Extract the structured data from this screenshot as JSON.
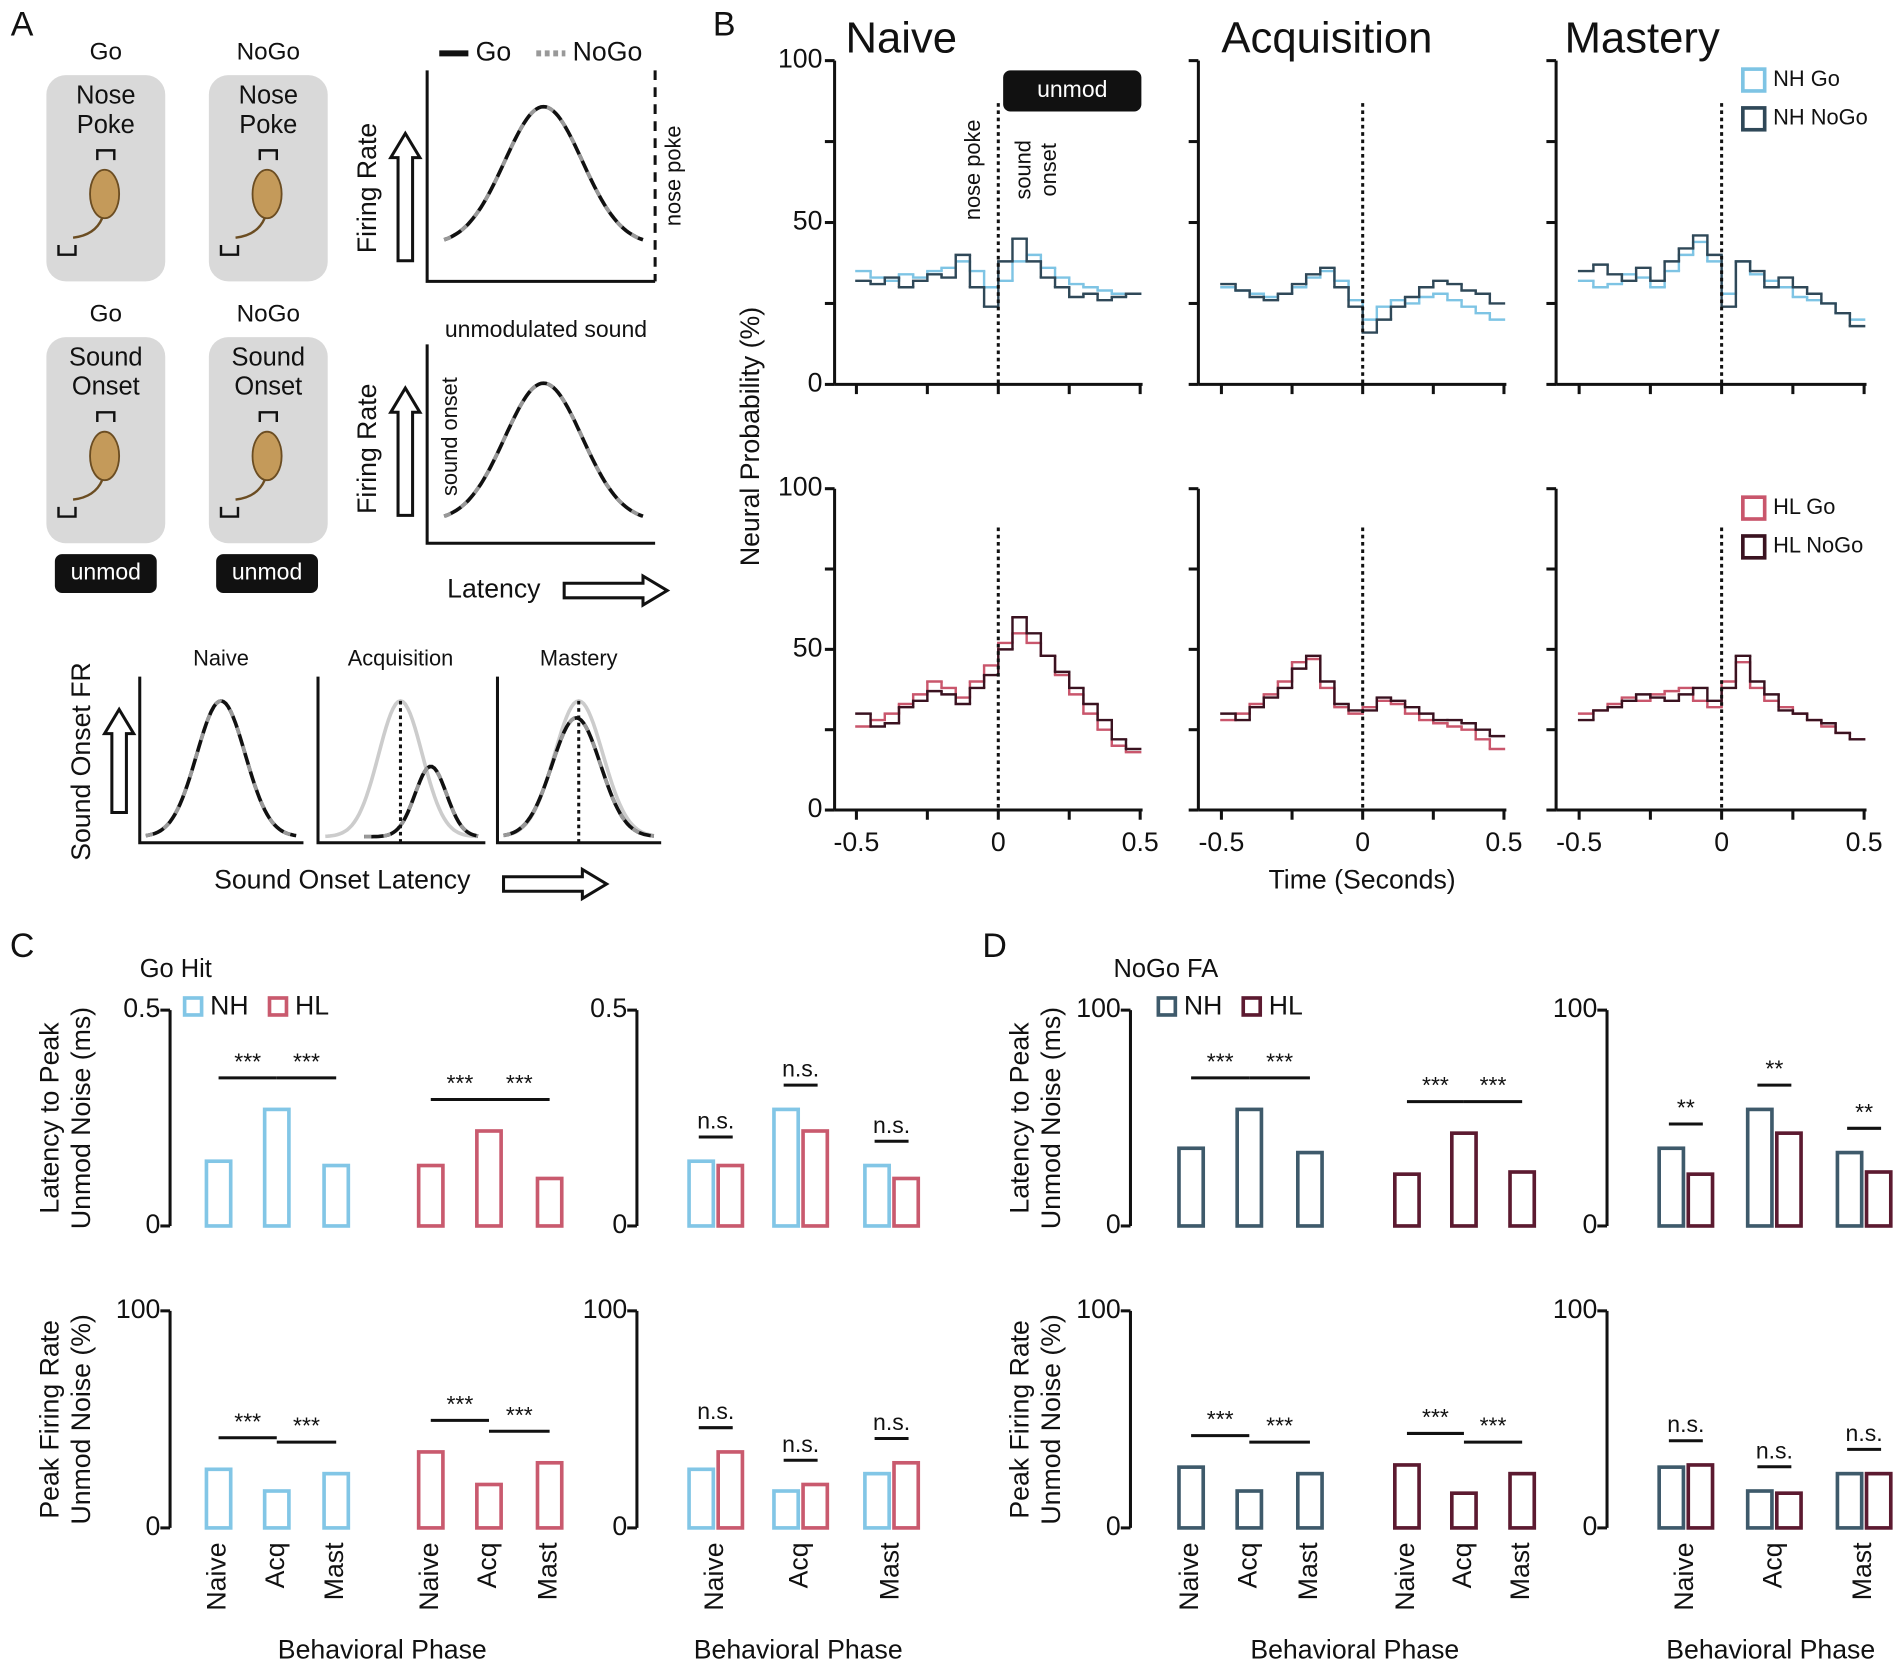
{
  "panel_labels": [
    "A",
    "B",
    "C",
    "D"
  ],
  "schematic": {
    "legend": [
      "Go",
      "NoGo"
    ],
    "cells": [
      {
        "label": "Go",
        "box": [
          "Nose",
          "Poke"
        ]
      },
      {
        "label": "NoGo",
        "box": [
          "Nose",
          "Poke"
        ]
      },
      {
        "label": "Go",
        "box": [
          "Sound",
          "Onset"
        ]
      },
      {
        "label": "NoGo",
        "box": [
          "Sound",
          "Onset"
        ]
      }
    ],
    "stimulus": "unmod",
    "firing_rate": "Firing Rate",
    "nose_poke": "nose poke",
    "unmodulated": "unmodulated sound",
    "sound_onset": "sound onset",
    "latency": "Latency",
    "phases": [
      "Naive",
      "Acquisition",
      "Mastery"
    ],
    "fr_label": "Sound Onset FR",
    "latency_label": "Sound Onset Latency"
  },
  "psth": {
    "ylabel": "Neural Probability (%)",
    "xlabel": "Time (Seconds)"
  },
  "chart_data": [
    {
      "type": "step",
      "title": "Naive",
      "xlim": [
        -0.5,
        0.5
      ],
      "ylim": [
        0,
        100
      ],
      "yticks": [
        0,
        50,
        100
      ],
      "minor_yticks": [
        25,
        75
      ],
      "minor_xticks": [
        -0.5,
        -0.25,
        0,
        0.25,
        0.5
      ],
      "event_x": 0,
      "annotations": {
        "stimulus": "unmod",
        "nose_poke": "nose poke",
        "sound_onset": [
          "sound",
          "onset"
        ]
      },
      "x": [
        -0.475,
        -0.425,
        -0.375,
        -0.325,
        -0.275,
        -0.225,
        -0.175,
        -0.125,
        -0.075,
        -0.025,
        0.025,
        0.075,
        0.125,
        0.175,
        0.225,
        0.275,
        0.325,
        0.375,
        0.425,
        0.475
      ],
      "series": [
        {
          "color": "#7ec4e4",
          "values": [
            35,
            33,
            32,
            34,
            33,
            35,
            36,
            38,
            35,
            30,
            32,
            38,
            40,
            36,
            33,
            31,
            30,
            29,
            28,
            28
          ]
        },
        {
          "color": "#2f4858",
          "values": [
            32,
            31,
            33,
            30,
            32,
            34,
            33,
            40,
            30,
            24,
            38,
            45,
            38,
            33,
            30,
            27,
            28,
            26,
            27,
            28
          ]
        }
      ]
    },
    {
      "type": "step",
      "title": "Acquisition",
      "xlim": [
        -0.5,
        0.5
      ],
      "ylim": [
        0,
        100
      ],
      "minor_yticks": [
        0,
        25,
        50,
        75,
        100
      ],
      "minor_xticks": [
        -0.5,
        -0.25,
        0,
        0.25,
        0.5
      ],
      "event_x": 0,
      "x": [
        -0.475,
        -0.425,
        -0.375,
        -0.325,
        -0.275,
        -0.225,
        -0.175,
        -0.125,
        -0.075,
        -0.025,
        0.025,
        0.075,
        0.125,
        0.175,
        0.225,
        0.275,
        0.325,
        0.375,
        0.425,
        0.475
      ],
      "series": [
        {
          "color": "#7ec4e4",
          "values": [
            30,
            29,
            28,
            27,
            28,
            30,
            33,
            35,
            32,
            26,
            20,
            24,
            26,
            25,
            27,
            28,
            26,
            24,
            22,
            20
          ]
        },
        {
          "color": "#2f4858",
          "values": [
            31,
            29,
            27,
            26,
            28,
            31,
            34,
            36,
            30,
            24,
            16,
            20,
            24,
            27,
            30,
            32,
            31,
            29,
            28,
            25
          ]
        }
      ]
    },
    {
      "type": "step",
      "title": "Mastery",
      "xlim": [
        -0.5,
        0.5
      ],
      "ylim": [
        0,
        100
      ],
      "minor_yticks": [
        0,
        25,
        50,
        75,
        100
      ],
      "minor_xticks": [
        -0.5,
        -0.25,
        0,
        0.25,
        0.5
      ],
      "event_x": 0,
      "legend": "upper right",
      "x": [
        -0.475,
        -0.425,
        -0.375,
        -0.325,
        -0.275,
        -0.225,
        -0.175,
        -0.125,
        -0.075,
        -0.025,
        0.025,
        0.075,
        0.125,
        0.175,
        0.225,
        0.275,
        0.325,
        0.375,
        0.425,
        0.475
      ],
      "series": [
        {
          "name": "NH Go",
          "color": "#7ec4e4",
          "values": [
            32,
            30,
            31,
            34,
            33,
            30,
            35,
            40,
            44,
            38,
            28,
            38,
            34,
            32,
            30,
            27,
            26,
            25,
            22,
            20
          ]
        },
        {
          "name": "NH NoGo",
          "color": "#2f4858",
          "values": [
            35,
            37,
            34,
            32,
            36,
            32,
            38,
            42,
            46,
            40,
            24,
            38,
            35,
            30,
            33,
            30,
            28,
            25,
            22,
            18
          ]
        }
      ]
    },
    {
      "type": "step",
      "xlim": [
        -0.5,
        0.5
      ],
      "ylim": [
        0,
        100
      ],
      "yticks": [
        0,
        50,
        100
      ],
      "minor_yticks": [
        25,
        75
      ],
      "xticks": [
        -0.5,
        0,
        0.5
      ],
      "minor_xticks": [
        -0.25,
        0.25
      ],
      "event_x": 0,
      "x": [
        -0.475,
        -0.425,
        -0.375,
        -0.325,
        -0.275,
        -0.225,
        -0.175,
        -0.125,
        -0.075,
        -0.025,
        0.025,
        0.075,
        0.125,
        0.175,
        0.225,
        0.275,
        0.325,
        0.375,
        0.425,
        0.475
      ],
      "series": [
        {
          "color": "#c9566c",
          "values": [
            26,
            28,
            30,
            33,
            36,
            40,
            38,
            35,
            40,
            45,
            52,
            55,
            52,
            48,
            42,
            36,
            30,
            25,
            20,
            18
          ]
        },
        {
          "color": "#3a1220",
          "values": [
            30,
            26,
            27,
            32,
            34,
            37,
            36,
            33,
            38,
            42,
            50,
            60,
            55,
            48,
            43,
            38,
            33,
            28,
            22,
            19
          ]
        }
      ]
    },
    {
      "type": "step",
      "xlim": [
        -0.5,
        0.5
      ],
      "ylim": [
        0,
        100
      ],
      "minor_yticks": [
        0,
        25,
        50,
        75,
        100
      ],
      "xticks": [
        -0.5,
        0,
        0.5
      ],
      "minor_xticks": [
        -0.25,
        0.25
      ],
      "event_x": 0,
      "x": [
        -0.475,
        -0.425,
        -0.375,
        -0.325,
        -0.275,
        -0.225,
        -0.175,
        -0.125,
        -0.075,
        -0.025,
        0.025,
        0.075,
        0.125,
        0.175,
        0.225,
        0.275,
        0.325,
        0.375,
        0.425,
        0.475
      ],
      "series": [
        {
          "color": "#c9566c",
          "values": [
            28,
            30,
            33,
            36,
            40,
            46,
            47,
            38,
            32,
            30,
            32,
            34,
            33,
            30,
            28,
            27,
            26,
            25,
            22,
            19
          ]
        },
        {
          "color": "#3a1220",
          "values": [
            30,
            28,
            32,
            35,
            38,
            44,
            48,
            40,
            33,
            31,
            31,
            35,
            34,
            32,
            30,
            28,
            28,
            27,
            25,
            23
          ]
        }
      ]
    },
    {
      "type": "step",
      "xlim": [
        -0.5,
        0.5
      ],
      "ylim": [
        0,
        100
      ],
      "minor_yticks": [
        0,
        25,
        50,
        75,
        100
      ],
      "xticks": [
        -0.5,
        0,
        0.5
      ],
      "minor_xticks": [
        -0.25,
        0.25
      ],
      "event_x": 0,
      "legend": "upper right",
      "x": [
        -0.475,
        -0.425,
        -0.375,
        -0.325,
        -0.275,
        -0.225,
        -0.175,
        -0.125,
        -0.075,
        -0.025,
        0.025,
        0.075,
        0.125,
        0.175,
        0.225,
        0.275,
        0.325,
        0.375,
        0.425,
        0.475
      ],
      "series": [
        {
          "name": "HL Go",
          "color": "#c9566c",
          "values": [
            30,
            31,
            33,
            35,
            34,
            36,
            37,
            38,
            34,
            32,
            40,
            46,
            38,
            34,
            32,
            30,
            28,
            26,
            24,
            22
          ]
        },
        {
          "name": "HL NoGo",
          "color": "#3a1220",
          "values": [
            28,
            31,
            32,
            34,
            36,
            35,
            34,
            36,
            38,
            34,
            38,
            48,
            40,
            36,
            31,
            30,
            28,
            27,
            24,
            22
          ]
        }
      ]
    },
    {
      "type": "bar",
      "layout": "separate",
      "subtitle": "Go Hit",
      "ylabel": [
        "Latency to Peak",
        "Unmod Noise (ms)"
      ],
      "ylim": [
        0,
        0.5
      ],
      "yticks": [
        0,
        0.5
      ],
      "legend": "upper left",
      "series": [
        {
          "name": "NH",
          "color": "#82c6e6",
          "values": [
            0.15,
            0.27,
            0.14
          ]
        },
        {
          "name": "HL",
          "color": "#c95a6e",
          "values": [
            0.14,
            0.22,
            0.11
          ]
        }
      ],
      "significance": [
        {
          "series": 0,
          "from": 0,
          "to": 1,
          "label": "***"
        },
        {
          "series": 0,
          "from": 1,
          "to": 2,
          "label": "***"
        },
        {
          "series": 1,
          "from": 0,
          "to": 1,
          "label": "***"
        },
        {
          "series": 1,
          "from": 1,
          "to": 2,
          "label": "***"
        }
      ]
    },
    {
      "type": "bar",
      "layout": "grouped",
      "ylim": [
        0,
        0.5
      ],
      "yticks": [
        0,
        0.5
      ],
      "series": [
        {
          "color": "#82c6e6",
          "values": [
            0.15,
            0.27,
            0.14
          ]
        },
        {
          "color": "#c95a6e",
          "values": [
            0.14,
            0.22,
            0.11
          ]
        }
      ],
      "significance": [
        {
          "category": 0,
          "label": "n.s."
        },
        {
          "category": 1,
          "label": "n.s."
        },
        {
          "category": 2,
          "label": "n.s."
        }
      ]
    },
    {
      "type": "bar",
      "layout": "separate",
      "ylabel": [
        "Peak Firing Rate",
        "Unmod Noise (%)"
      ],
      "xlabel": "Behavioral Phase",
      "ylim": [
        0,
        100
      ],
      "yticks": [
        0,
        100
      ],
      "categories": [
        "Naive",
        "Acq",
        "Mast"
      ],
      "series": [
        {
          "color": "#82c6e6",
          "values": [
            27,
            17,
            25
          ]
        },
        {
          "color": "#c95a6e",
          "values": [
            35,
            20,
            30
          ]
        }
      ],
      "significance": [
        {
          "series": 0,
          "from": 0,
          "to": 1,
          "label": "***"
        },
        {
          "series": 0,
          "from": 1,
          "to": 2,
          "label": "***"
        },
        {
          "series": 1,
          "from": 0,
          "to": 1,
          "label": "***"
        },
        {
          "series": 1,
          "from": 1,
          "to": 2,
          "label": "***"
        }
      ]
    },
    {
      "type": "bar",
      "layout": "grouped",
      "xlabel": "Behavioral Phase",
      "ylim": [
        0,
        100
      ],
      "yticks": [
        0,
        100
      ],
      "categories": [
        "Naive",
        "Acq",
        "Mast"
      ],
      "series": [
        {
          "color": "#82c6e6",
          "values": [
            27,
            17,
            25
          ]
        },
        {
          "color": "#c95a6e",
          "values": [
            35,
            20,
            30
          ]
        }
      ],
      "significance": [
        {
          "category": 0,
          "label": "n.s."
        },
        {
          "category": 1,
          "label": "n.s."
        },
        {
          "category": 2,
          "label": "n.s."
        }
      ]
    },
    {
      "type": "bar",
      "layout": "separate",
      "subtitle": "NoGo FA",
      "ylabel": [
        "Latency to Peak",
        "Unmod Noise (ms)"
      ],
      "ylim": [
        0,
        100
      ],
      "yticks": [
        0,
        100
      ],
      "legend": "upper left",
      "series": [
        {
          "name": "NH",
          "color": "#3e5a6b",
          "values": [
            36,
            54,
            34
          ]
        },
        {
          "name": "HL",
          "color": "#5c1a30",
          "values": [
            24,
            43,
            25
          ]
        }
      ],
      "significance": [
        {
          "series": 0,
          "from": 0,
          "to": 1,
          "label": "***"
        },
        {
          "series": 0,
          "from": 1,
          "to": 2,
          "label": "***"
        },
        {
          "series": 1,
          "from": 0,
          "to": 1,
          "label": "***"
        },
        {
          "series": 1,
          "from": 1,
          "to": 2,
          "label": "***"
        }
      ]
    },
    {
      "type": "bar",
      "layout": "grouped",
      "ylim": [
        0,
        100
      ],
      "yticks": [
        0,
        100
      ],
      "series": [
        {
          "color": "#3e5a6b",
          "values": [
            36,
            54,
            34
          ]
        },
        {
          "color": "#5c1a30",
          "values": [
            24,
            43,
            25
          ]
        }
      ],
      "significance": [
        {
          "category": 0,
          "label": "**"
        },
        {
          "category": 1,
          "label": "**"
        },
        {
          "category": 2,
          "label": "**"
        }
      ]
    },
    {
      "type": "bar",
      "layout": "separate",
      "ylabel": [
        "Peak Firing Rate",
        "Unmod Noise (%)"
      ],
      "xlabel": "Behavioral Phase",
      "ylim": [
        0,
        100
      ],
      "yticks": [
        0,
        100
      ],
      "categories": [
        "Naive",
        "Acq",
        "Mast"
      ],
      "series": [
        {
          "color": "#3e5a6b",
          "values": [
            28,
            17,
            25
          ]
        },
        {
          "color": "#5c1a30",
          "values": [
            29,
            16,
            25
          ]
        }
      ],
      "significance": [
        {
          "series": 0,
          "from": 0,
          "to": 1,
          "label": "***"
        },
        {
          "series": 0,
          "from": 1,
          "to": 2,
          "label": "***"
        },
        {
          "series": 1,
          "from": 0,
          "to": 1,
          "label": "***"
        },
        {
          "series": 1,
          "from": 1,
          "to": 2,
          "label": "***"
        }
      ]
    },
    {
      "type": "bar",
      "layout": "grouped",
      "xlabel": "Behavioral Phase",
      "ylim": [
        0,
        100
      ],
      "yticks": [
        0,
        100
      ],
      "categories": [
        "Naive",
        "Acq",
        "Mast"
      ],
      "series": [
        {
          "color": "#3e5a6b",
          "values": [
            28,
            17,
            25
          ]
        },
        {
          "color": "#5c1a30",
          "values": [
            29,
            16,
            25
          ]
        }
      ],
      "significance": [
        {
          "category": 0,
          "label": "n.s."
        },
        {
          "category": 1,
          "label": "n.s."
        },
        {
          "category": 2,
          "label": "n.s."
        }
      ]
    }
  ]
}
